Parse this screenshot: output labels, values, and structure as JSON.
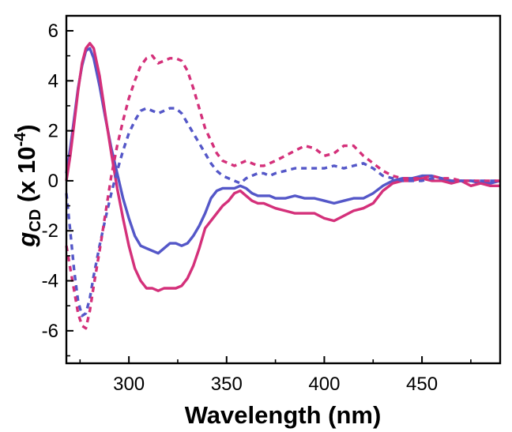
{
  "chart_data": {
    "type": "line",
    "title": "",
    "xlabel": "Wavelength (nm)",
    "ylabel": {
      "symbol": "g",
      "subscript": "CD",
      "unit_prefix": " (x 10",
      "exponent": "-4",
      "unit_suffix": ")"
    },
    "xlim": [
      268,
      490
    ],
    "ylim": [
      -7.3,
      6.6
    ],
    "xticks": [
      300,
      350,
      400,
      450
    ],
    "xtick_labels": [
      "300",
      "350",
      "400",
      "450"
    ],
    "yticks": [
      -6,
      -4,
      -2,
      0,
      2,
      4,
      6
    ],
    "ytick_labels": [
      "-6",
      "-4",
      "-2",
      "0",
      "2",
      "4",
      "6"
    ],
    "legend": "none",
    "grid": false,
    "series": [
      {
        "name": "blue solid",
        "color": "#5457c8",
        "style": "solid",
        "x": [
          268,
          270,
          272,
          274,
          276,
          278,
          280,
          282,
          285,
          288,
          291,
          294,
          297,
          300,
          303,
          306,
          309,
          312,
          315,
          318,
          321,
          324,
          327,
          330,
          333,
          336,
          339,
          342,
          345,
          348,
          351,
          354,
          357,
          360,
          363,
          366,
          369,
          372,
          375,
          380,
          385,
          390,
          395,
          400,
          405,
          410,
          415,
          420,
          425,
          430,
          435,
          440,
          445,
          450,
          455,
          460,
          465,
          470,
          475,
          480,
          485,
          490
        ],
        "y": [
          0.3,
          1.3,
          2.5,
          3.7,
          4.6,
          5.2,
          5.3,
          4.9,
          3.8,
          2.5,
          1.3,
          0.3,
          -0.7,
          -1.5,
          -2.2,
          -2.6,
          -2.7,
          -2.8,
          -2.9,
          -2.7,
          -2.5,
          -2.5,
          -2.6,
          -2.5,
          -2.2,
          -1.8,
          -1.3,
          -0.7,
          -0.4,
          -0.3,
          -0.3,
          -0.3,
          -0.2,
          -0.3,
          -0.5,
          -0.6,
          -0.6,
          -0.6,
          -0.7,
          -0.7,
          -0.6,
          -0.7,
          -0.7,
          -0.8,
          -0.9,
          -0.8,
          -0.7,
          -0.7,
          -0.5,
          -0.2,
          0.0,
          0.1,
          0.1,
          0.2,
          0.2,
          0.1,
          0.0,
          0.0,
          0.0,
          -0.1,
          -0.1,
          0.0
        ]
      },
      {
        "name": "magenta solid",
        "color": "#d4307a",
        "style": "solid",
        "x": [
          268,
          270,
          272,
          274,
          276,
          278,
          280,
          282,
          285,
          288,
          291,
          294,
          297,
          300,
          303,
          306,
          309,
          312,
          315,
          318,
          321,
          324,
          327,
          330,
          333,
          336,
          339,
          342,
          345,
          348,
          351,
          354,
          357,
          360,
          363,
          366,
          369,
          372,
          375,
          380,
          385,
          390,
          395,
          400,
          405,
          410,
          415,
          420,
          425,
          430,
          435,
          440,
          445,
          450,
          455,
          460,
          465,
          470,
          475,
          480,
          485,
          490
        ],
        "y": [
          0.0,
          1.0,
          2.3,
          3.6,
          4.7,
          5.3,
          5.5,
          5.3,
          4.2,
          2.6,
          1.1,
          -0.3,
          -1.5,
          -2.6,
          -3.5,
          -4.0,
          -4.3,
          -4.3,
          -4.4,
          -4.3,
          -4.3,
          -4.3,
          -4.2,
          -3.9,
          -3.4,
          -2.7,
          -1.9,
          -1.6,
          -1.3,
          -1.0,
          -0.8,
          -0.5,
          -0.4,
          -0.6,
          -0.8,
          -0.9,
          -0.9,
          -1.0,
          -1.1,
          -1.2,
          -1.3,
          -1.3,
          -1.3,
          -1.5,
          -1.6,
          -1.4,
          -1.2,
          -1.1,
          -0.9,
          -0.4,
          -0.1,
          0.0,
          0.0,
          0.1,
          0.0,
          0.0,
          -0.1,
          0.0,
          -0.2,
          -0.1,
          -0.2,
          -0.2
        ]
      },
      {
        "name": "blue dashed",
        "color": "#5457c8",
        "style": "dashed",
        "x": [
          268,
          270,
          272,
          274,
          276,
          278,
          280,
          282,
          285,
          288,
          291,
          294,
          297,
          300,
          303,
          306,
          309,
          312,
          315,
          318,
          321,
          324,
          327,
          330,
          333,
          336,
          339,
          342,
          345,
          348,
          351,
          354,
          357,
          360,
          363,
          366,
          369,
          372,
          375,
          380,
          385,
          390,
          395,
          400,
          405,
          410,
          415,
          420,
          425,
          430,
          435,
          440,
          445,
          450,
          455,
          460,
          465,
          470,
          475,
          480,
          485,
          490
        ],
        "y": [
          -0.5,
          -2.0,
          -3.6,
          -4.8,
          -5.4,
          -5.3,
          -4.7,
          -3.8,
          -2.6,
          -1.5,
          -0.5,
          0.4,
          1.2,
          1.9,
          2.4,
          2.8,
          2.9,
          2.8,
          2.7,
          2.8,
          2.9,
          2.9,
          2.7,
          2.3,
          1.9,
          1.5,
          1.1,
          0.7,
          0.4,
          0.2,
          0.1,
          0.0,
          -0.1,
          0.1,
          0.2,
          0.3,
          0.3,
          0.2,
          0.3,
          0.4,
          0.5,
          0.5,
          0.5,
          0.5,
          0.6,
          0.5,
          0.6,
          0.7,
          0.5,
          0.2,
          0.1,
          0.0,
          0.0,
          0.0,
          0.1,
          0.1,
          0.0,
          0.0,
          0.0,
          0.0,
          0.0,
          0.0
        ]
      },
      {
        "name": "magenta dashed",
        "color": "#d4307a",
        "style": "dashed",
        "x": [
          268,
          270,
          272,
          274,
          276,
          278,
          280,
          282,
          285,
          288,
          291,
          294,
          297,
          300,
          303,
          306,
          309,
          312,
          315,
          318,
          321,
          324,
          327,
          330,
          333,
          336,
          339,
          342,
          345,
          348,
          351,
          354,
          357,
          360,
          363,
          366,
          369,
          372,
          375,
          380,
          385,
          390,
          395,
          400,
          405,
          410,
          415,
          420,
          425,
          430,
          435,
          440,
          445,
          450,
          455,
          460,
          465,
          470,
          475,
          480,
          485,
          490
        ],
        "y": [
          -2.6,
          -3.5,
          -4.4,
          -5.3,
          -5.8,
          -5.9,
          -5.2,
          -4.2,
          -2.8,
          -1.3,
          0.2,
          1.4,
          2.4,
          3.3,
          4.0,
          4.6,
          4.9,
          5.0,
          4.7,
          4.8,
          4.9,
          4.9,
          4.8,
          4.4,
          3.7,
          2.9,
          2.1,
          1.6,
          1.1,
          0.8,
          0.7,
          0.6,
          0.7,
          0.8,
          0.7,
          0.6,
          0.6,
          0.7,
          0.8,
          1.0,
          1.2,
          1.4,
          1.3,
          1.0,
          1.1,
          1.4,
          1.4,
          1.0,
          0.7,
          0.4,
          0.2,
          0.1,
          0.1,
          0.1,
          0.2,
          0.1,
          0.1,
          0.0,
          0.0,
          0.0,
          0.0,
          0.0
        ]
      }
    ]
  }
}
